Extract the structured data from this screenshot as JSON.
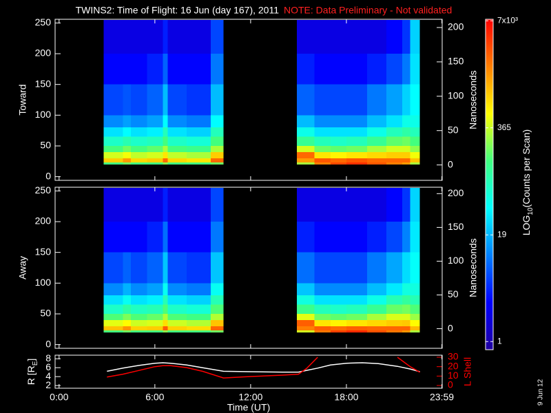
{
  "title": "TWINS2: Time of Flight: 16 Jun (day 167), 2011",
  "note": "NOTE: Data Preliminary - Not validated",
  "date_stamp": "9 Jun 12",
  "colorbar": {
    "zlim": [
      0.8,
      7300
    ],
    "log": true,
    "colors": [
      "#2000a0",
      "#0000ff",
      "#0080ff",
      "#00ffff",
      "#40ff80",
      "#ffff00",
      "#ff8000",
      "#ff0000"
    ],
    "ticks": [
      1,
      19,
      365,
      {
        "value": 7000,
        "label": "7x10³"
      }
    ],
    "label": [
      "LOG",
      "10",
      "(Counts per Scan)"
    ]
  },
  "chart_data": [
    {
      "type": "heatmap",
      "ylabel": "Toward",
      "y2label": "Nanoseconds",
      "xlim": [
        -0.25,
        24
      ],
      "ylim": [
        -6,
        256
      ],
      "yticks": [
        0,
        50,
        100,
        150,
        200,
        250
      ],
      "y2lim": [
        -22.4,
        212
      ],
      "y2ticks": [
        0,
        50,
        100,
        150,
        200
      ],
      "ybins": [
        20,
        23,
        30,
        40,
        50,
        65,
        80,
        100,
        150,
        200,
        255
      ],
      "segments": [
        {
          "xbins": [
            2.8,
            4,
            4.5,
            5.5,
            6.5,
            6.8,
            8,
            9.5,
            10.3
          ],
          "z": [
            [
              150,
              900,
              400,
              150,
              70,
              30,
              12,
              6,
              3,
              2
            ],
            [
              200,
              1500,
              500,
              200,
              90,
              40,
              15,
              7,
              3,
              2
            ],
            [
              150,
              800,
              350,
              150,
              70,
              30,
              12,
              6,
              3,
              2
            ],
            [
              150,
              900,
              400,
              180,
              80,
              35,
              15,
              8,
              4,
              2
            ],
            [
              250,
              2500,
              700,
              300,
              150,
              80,
              40,
              20,
              8,
              4
            ],
            [
              150,
              800,
              350,
              150,
              70,
              30,
              12,
              6,
              3,
              2
            ],
            [
              150,
              700,
              300,
              130,
              60,
              25,
              10,
              5,
              3,
              2
            ],
            [
              200,
              2500,
              900,
              300,
              150,
              80,
              40,
              20,
              10,
              6
            ]
          ]
        },
        {
          "xbins": [
            14.9,
            16,
            17,
            18,
            19.3,
            20.5,
            21.5,
            22,
            22.6
          ],
          "z": [
            [
              300,
              1500,
              2500,
              400,
              120,
              50,
              20,
              8,
              4,
              2
            ],
            [
              2000,
              3000,
              700,
              200,
              80,
              30,
              12,
              6,
              3,
              2
            ],
            [
              3500,
              2500,
              600,
              180,
              70,
              30,
              12,
              6,
              3,
              2
            ],
            [
              4500,
              3000,
              700,
              200,
              80,
              30,
              12,
              6,
              3,
              2
            ],
            [
              3000,
              2500,
              800,
              300,
              120,
              50,
              20,
              10,
              4,
              2
            ],
            [
              2000,
              2500,
              900,
              400,
              180,
              80,
              30,
              15,
              6,
              3
            ],
            [
              1500,
              2500,
              900,
              400,
              200,
              100,
              50,
              25,
              10,
              5
            ],
            [
              300,
              1000,
              500,
              250,
              150,
              80,
              50,
              40,
              30,
              25
            ]
          ]
        }
      ]
    },
    {
      "type": "heatmap",
      "ylabel": "Away",
      "y2label": "Nanoseconds",
      "xlim": [
        -0.25,
        24
      ],
      "ylim": [
        -6,
        256
      ],
      "yticks": [
        0,
        50,
        100,
        150,
        200,
        250
      ],
      "y2lim": [
        -29,
        209.5
      ],
      "y2ticks": [
        0,
        50,
        100,
        150,
        200
      ],
      "ybins": [
        20,
        23,
        30,
        40,
        50,
        65,
        80,
        100,
        150,
        200,
        255
      ],
      "segments": [
        {
          "xbins": [
            2.8,
            4,
            4.5,
            5.5,
            6.5,
            6.8,
            8,
            9.5,
            10.3
          ],
          "z": [
            [
              150,
              1000,
              450,
              160,
              70,
              30,
              12,
              6,
              3,
              2
            ],
            [
              200,
              1600,
              550,
              220,
              100,
              45,
              18,
              8,
              3,
              2
            ],
            [
              150,
              850,
              380,
              160,
              75,
              30,
              12,
              6,
              3,
              2
            ],
            [
              150,
              900,
              420,
              190,
              85,
              35,
              15,
              8,
              4,
              2
            ],
            [
              250,
              2800,
              750,
              320,
              160,
              85,
              45,
              22,
              9,
              4
            ],
            [
              150,
              850,
              380,
              160,
              70,
              30,
              12,
              6,
              3,
              2
            ],
            [
              150,
              750,
              320,
              140,
              60,
              25,
              10,
              5,
              3,
              2
            ],
            [
              200,
              2600,
              1000,
              320,
              160,
              85,
              45,
              22,
              10,
              6
            ]
          ]
        },
        {
          "xbins": [
            14.9,
            16,
            17,
            18,
            19.3,
            20.5,
            21.5,
            22,
            22.6
          ],
          "z": [
            [
              400,
              2000,
              2800,
              450,
              130,
              55,
              22,
              9,
              4,
              2
            ],
            [
              2200,
              2800,
              700,
              200,
              80,
              30,
              12,
              6,
              3,
              2
            ],
            [
              3800,
              2400,
              600,
              180,
              70,
              30,
              12,
              6,
              3,
              2
            ],
            [
              4800,
              2800,
              700,
              200,
              80,
              30,
              12,
              6,
              3,
              2
            ],
            [
              3200,
              2600,
              800,
              300,
              120,
              50,
              20,
              10,
              4,
              2
            ],
            [
              2200,
              2600,
              900,
              420,
              190,
              85,
              32,
              16,
              6,
              3
            ],
            [
              1600,
              2600,
              950,
              420,
              210,
              110,
              55,
              28,
              11,
              5
            ],
            [
              300,
              1100,
              550,
              270,
              160,
              85,
              55,
              42,
              32,
              26
            ]
          ]
        }
      ]
    },
    {
      "type": "line",
      "ylabel": [
        "R [R",
        "E",
        "]"
      ],
      "y2label": "L Shell",
      "xlabel": "Time (UT)",
      "xlim": [
        -0.25,
        24
      ],
      "ylim": [
        1.4,
        8.8
      ],
      "yticks": [
        2,
        4,
        6,
        8
      ],
      "y2lim": [
        -2.9,
        32.2
      ],
      "y2ticks": [
        0,
        10,
        20,
        30
      ],
      "xticks": [
        {
          "value": 0,
          "label": "0:00"
        },
        {
          "value": 6,
          "label": "6:00"
        },
        {
          "value": 12,
          "label": "12:00"
        },
        {
          "value": 18,
          "label": "18:00"
        },
        {
          "value": 23.98,
          "label": "23:59"
        }
      ],
      "x": [
        3,
        4,
        5,
        6,
        6.5,
        7,
        8,
        9,
        10.3,
        12,
        14,
        15,
        15.5,
        16.2,
        17,
        18,
        19,
        20,
        21.2,
        22,
        22.6
      ],
      "series": [
        {
          "color": "#ffffff",
          "values": [
            5.2,
            5.9,
            6.5,
            7.0,
            7.1,
            7.0,
            6.6,
            6.0,
            5.2,
            5.1,
            5.0,
            5.0,
            5.4,
            5.9,
            6.6,
            7.0,
            7.1,
            6.9,
            6.3,
            5.7,
            5.1
          ]
        },
        {
          "color": "#ff0000",
          "axis": "y2",
          "values": [
            9,
            12,
            16,
            20,
            21,
            21,
            19,
            15,
            8,
            9.5,
            11,
            12,
            18,
            30,
            null,
            null,
            null,
            null,
            30,
            20,
            14
          ]
        }
      ]
    }
  ]
}
